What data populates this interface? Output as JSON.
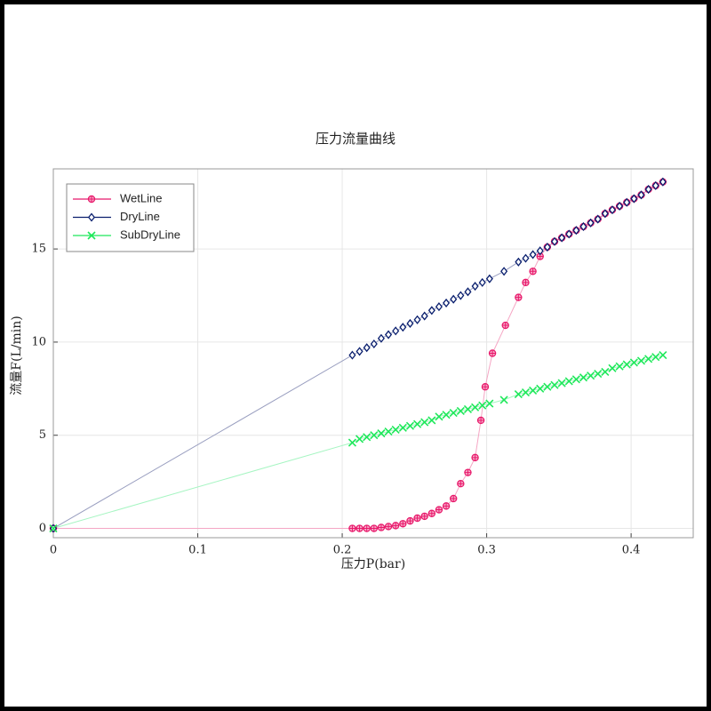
{
  "chart_data": {
    "type": "line",
    "title": "压力流量曲线",
    "x_label": "压力P(bar)",
    "y_label": "流量F(L/min)",
    "xlim": [
      0,
      0.443
    ],
    "ylim": [
      -0.5,
      19.3
    ],
    "xticks": [
      0,
      0.1,
      0.2,
      0.3,
      0.4
    ],
    "yticks": [
      0,
      5,
      10,
      15
    ],
    "grid": true,
    "legend": "upper left",
    "series": [
      {
        "name": "WetLine",
        "color": "#e8186a",
        "line_color": "#f5a6c4",
        "marker": "circle-plus",
        "x": [
          0,
          0.207,
          0.212,
          0.217,
          0.222,
          0.227,
          0.232,
          0.237,
          0.242,
          0.247,
          0.252,
          0.257,
          0.262,
          0.267,
          0.272,
          0.277,
          0.282,
          0.287,
          0.292,
          0.296,
          0.299,
          0.304,
          0.313,
          0.322,
          0.327,
          0.332,
          0.337,
          0.342,
          0.347,
          0.352,
          0.357,
          0.362,
          0.367,
          0.372,
          0.377,
          0.382,
          0.387,
          0.392,
          0.397,
          0.402,
          0.407,
          0.412,
          0.417,
          0.422
        ],
        "values": [
          0,
          0,
          0,
          0,
          0,
          0.05,
          0.1,
          0.15,
          0.25,
          0.4,
          0.55,
          0.65,
          0.8,
          1.0,
          1.2,
          1.6,
          2.4,
          3.0,
          3.8,
          5.8,
          7.6,
          9.4,
          10.9,
          12.4,
          13.2,
          13.8,
          14.6,
          15.1,
          15.4,
          15.6,
          15.8,
          16.0,
          16.2,
          16.4,
          16.6,
          16.9,
          17.1,
          17.3,
          17.5,
          17.7,
          17.9,
          18.2,
          18.4,
          18.6
        ]
      },
      {
        "name": "DryLine",
        "color": "#0a1f6e",
        "line_color": "#9a9fc0",
        "marker": "diamond",
        "x": [
          0,
          0.207,
          0.212,
          0.217,
          0.222,
          0.227,
          0.232,
          0.237,
          0.242,
          0.247,
          0.252,
          0.257,
          0.262,
          0.267,
          0.272,
          0.277,
          0.282,
          0.287,
          0.292,
          0.297,
          0.302,
          0.312,
          0.322,
          0.327,
          0.332,
          0.337,
          0.342,
          0.347,
          0.352,
          0.357,
          0.362,
          0.367,
          0.372,
          0.377,
          0.382,
          0.387,
          0.392,
          0.397,
          0.402,
          0.407,
          0.412,
          0.417,
          0.422
        ],
        "values": [
          0,
          9.3,
          9.5,
          9.7,
          9.9,
          10.2,
          10.4,
          10.6,
          10.8,
          11.0,
          11.2,
          11.4,
          11.7,
          11.9,
          12.1,
          12.3,
          12.5,
          12.7,
          13.0,
          13.2,
          13.4,
          13.8,
          14.3,
          14.5,
          14.7,
          14.9,
          15.1,
          15.4,
          15.6,
          15.8,
          16.0,
          16.2,
          16.4,
          16.6,
          16.9,
          17.1,
          17.3,
          17.5,
          17.7,
          17.9,
          18.2,
          18.4,
          18.6
        ]
      },
      {
        "name": "SubDryLine",
        "color": "#1ee85a",
        "line_color": "#a6f5c2",
        "marker": "x",
        "x": [
          0,
          0.207,
          0.212,
          0.217,
          0.222,
          0.227,
          0.232,
          0.237,
          0.242,
          0.247,
          0.252,
          0.257,
          0.262,
          0.267,
          0.272,
          0.277,
          0.282,
          0.287,
          0.292,
          0.297,
          0.302,
          0.312,
          0.322,
          0.327,
          0.332,
          0.337,
          0.342,
          0.347,
          0.352,
          0.357,
          0.362,
          0.367,
          0.372,
          0.377,
          0.382,
          0.387,
          0.392,
          0.397,
          0.402,
          0.407,
          0.412,
          0.417,
          0.422
        ],
        "values": [
          0,
          4.6,
          4.8,
          4.9,
          5.0,
          5.1,
          5.2,
          5.3,
          5.4,
          5.5,
          5.6,
          5.7,
          5.8,
          6.0,
          6.1,
          6.2,
          6.3,
          6.4,
          6.5,
          6.6,
          6.7,
          6.9,
          7.2,
          7.3,
          7.4,
          7.5,
          7.6,
          7.7,
          7.8,
          7.9,
          8.0,
          8.1,
          8.2,
          8.3,
          8.4,
          8.6,
          8.7,
          8.8,
          8.9,
          9.0,
          9.1,
          9.2,
          9.3
        ]
      }
    ]
  }
}
